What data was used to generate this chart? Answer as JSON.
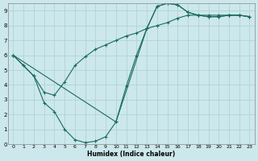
{
  "xlabel": "Humidex (Indice chaleur)",
  "xlim": [
    -0.5,
    23.5
  ],
  "ylim": [
    0,
    9.5
  ],
  "xticks": [
    0,
    1,
    2,
    3,
    4,
    5,
    6,
    7,
    8,
    9,
    10,
    11,
    12,
    13,
    14,
    15,
    16,
    17,
    18,
    19,
    20,
    21,
    22,
    23
  ],
  "yticks": [
    0,
    1,
    2,
    3,
    4,
    5,
    6,
    7,
    8,
    9
  ],
  "bg_color": "#cce8ec",
  "line_color": "#1a6b5a",
  "grid_color": "#aacfd4",
  "line1_x": [
    0,
    1,
    2,
    3,
    4,
    5,
    6,
    7,
    8,
    9,
    10,
    11,
    12,
    13,
    14,
    15,
    16,
    17,
    18,
    19,
    20,
    21,
    22,
    23
  ],
  "line1_y": [
    6.0,
    5.3,
    4.6,
    3.5,
    3.3,
    4.2,
    5.3,
    5.9,
    6.4,
    6.7,
    7.0,
    7.3,
    7.5,
    7.8,
    8.0,
    8.2,
    8.5,
    8.7,
    8.7,
    8.7,
    8.7,
    8.7,
    8.7,
    8.6
  ],
  "line2_x": [
    0,
    1,
    2,
    3,
    4,
    5,
    6,
    7,
    8,
    9,
    10,
    11,
    12,
    13,
    14,
    15,
    16,
    17,
    18,
    19,
    20,
    21,
    22,
    23
  ],
  "line2_y": [
    6.0,
    5.3,
    4.6,
    2.8,
    2.2,
    1.0,
    0.3,
    0.1,
    0.2,
    0.5,
    1.5,
    3.9,
    6.0,
    7.8,
    9.3,
    9.5,
    9.4,
    8.9,
    8.7,
    8.6,
    8.6,
    8.7,
    8.7,
    8.6
  ],
  "line3_x": [
    0,
    10,
    13,
    14,
    15,
    16,
    17,
    18,
    19,
    20,
    21,
    22,
    23
  ],
  "line3_y": [
    6.0,
    1.5,
    7.8,
    9.3,
    9.5,
    9.4,
    8.9,
    8.7,
    8.6,
    8.6,
    8.7,
    8.7,
    8.6
  ]
}
